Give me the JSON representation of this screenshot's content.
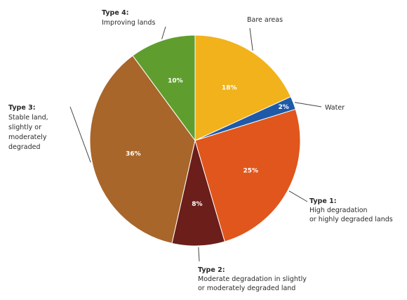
{
  "chart_data": {
    "type": "pie",
    "slices": [
      {
        "key": "bare",
        "type_label": "",
        "description": "Bare areas",
        "value": 18,
        "value_label": "18%",
        "color": "#f2b21b"
      },
      {
        "key": "water",
        "type_label": "",
        "description": "Water",
        "value": 2,
        "value_label": "2%",
        "color": "#1f5aa8"
      },
      {
        "key": "type1",
        "type_label": "Type 1:",
        "description": "High degradation or highly degraded lands",
        "value": 25,
        "value_label": "25%",
        "color": "#e0561c"
      },
      {
        "key": "type2",
        "type_label": "Type 2:",
        "description": "Moderate degradation in slightly or moderately degraded land",
        "value": 8,
        "value_label": "8%",
        "color": "#6b1e1a"
      },
      {
        "key": "type3",
        "type_label": "Type 3:",
        "description": "Stable land, slightly or moderately degraded",
        "value": 36,
        "value_label": "36%",
        "color": "#a8662a"
      },
      {
        "key": "type4",
        "type_label": "Type 4:",
        "description": "Improving lands",
        "value": 10,
        "value_label": "10%",
        "color": "#5f9e2e"
      }
    ]
  }
}
